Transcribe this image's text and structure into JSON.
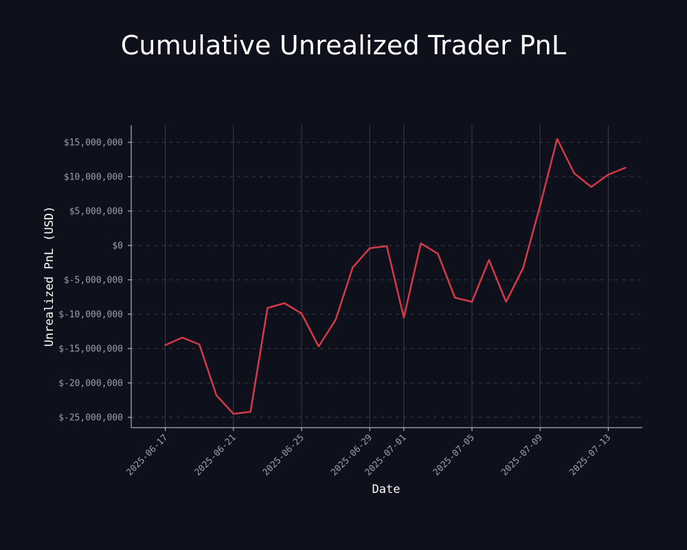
{
  "chart_data": {
    "type": "line",
    "title": "Cumulative Unrealized Trader PnL",
    "xlabel": "Date",
    "ylabel": "Unrealized PnL (USD)",
    "x_tick_labels": [
      "2025-06-17",
      "2025-06-21",
      "2025-06-25",
      "2025-06-29",
      "2025-07-01",
      "2025-07-05",
      "2025-07-09",
      "2025-07-13"
    ],
    "y_tick_values": [
      15000000,
      10000000,
      5000000,
      0,
      -5000000,
      -10000000,
      -15000000,
      -20000000,
      -25000000
    ],
    "y_tick_labels": [
      "$15,000,000",
      "$10,000,000",
      "$5,000,000",
      "$0",
      "$-5,000,000",
      "$-10,000,000",
      "$-15,000,000",
      "$-20,000,000",
      "$-25,000,000"
    ],
    "xlim": [
      "2025-06-15",
      "2025-07-15"
    ],
    "ylim": [
      -26500000,
      17500000
    ],
    "grid": {
      "horizontal": "dashed",
      "vertical": "solid"
    },
    "series": [
      {
        "color": "#d63a48",
        "points": [
          {
            "x": "2025-06-17",
            "y": -14500000
          },
          {
            "x": "2025-06-18",
            "y": -13400000
          },
          {
            "x": "2025-06-19",
            "y": -14400000
          },
          {
            "x": "2025-06-20",
            "y": -21800000
          },
          {
            "x": "2025-06-21",
            "y": -24500000
          },
          {
            "x": "2025-06-22",
            "y": -24200000
          },
          {
            "x": "2025-06-23",
            "y": -9100000
          },
          {
            "x": "2025-06-24",
            "y": -8400000
          },
          {
            "x": "2025-06-25",
            "y": -9900000
          },
          {
            "x": "2025-06-26",
            "y": -14700000
          },
          {
            "x": "2025-06-27",
            "y": -10800000
          },
          {
            "x": "2025-06-28",
            "y": -3200000
          },
          {
            "x": "2025-06-29",
            "y": -400000
          },
          {
            "x": "2025-06-30",
            "y": -100000
          },
          {
            "x": "2025-07-01",
            "y": -10500000
          },
          {
            "x": "2025-07-02",
            "y": 300000
          },
          {
            "x": "2025-07-03",
            "y": -1200000
          },
          {
            "x": "2025-07-04",
            "y": -7600000
          },
          {
            "x": "2025-07-05",
            "y": -8200000
          },
          {
            "x": "2025-07-06",
            "y": -2100000
          },
          {
            "x": "2025-07-07",
            "y": -8200000
          },
          {
            "x": "2025-07-08",
            "y": -3300000
          },
          {
            "x": "2025-07-09",
            "y": 5800000
          },
          {
            "x": "2025-07-10",
            "y": 15500000
          },
          {
            "x": "2025-07-11",
            "y": 10500000
          },
          {
            "x": "2025-07-12",
            "y": 8500000
          },
          {
            "x": "2025-07-13",
            "y": 10300000
          },
          {
            "x": "2025-07-14",
            "y": 11300000
          }
        ]
      }
    ]
  },
  "colors": {
    "background": "#0e111b",
    "line": "#d63a48",
    "grid": "#3a3f4b",
    "tick_text": "#9aa0ad",
    "label_text": "#ffffff"
  }
}
